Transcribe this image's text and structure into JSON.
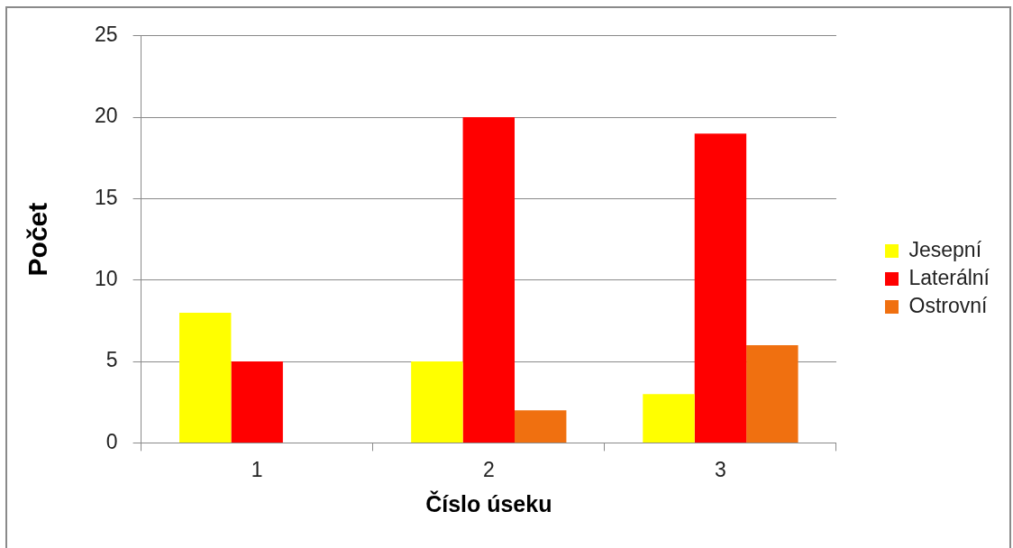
{
  "chart_data": {
    "type": "bar",
    "xlabel": "Číslo úseku",
    "ylabel": "Počet",
    "categories": [
      "1",
      "2",
      "3"
    ],
    "series": [
      {
        "name": "Jesepní",
        "color": "#ffff00",
        "values": [
          8,
          5,
          3
        ]
      },
      {
        "name": "Laterální",
        "color": "#ff0000",
        "values": [
          5,
          20,
          19
        ]
      },
      {
        "name": "Ostrovní",
        "color": "#f07010",
        "values": [
          null,
          2,
          6
        ]
      }
    ],
    "ylim": [
      0,
      25
    ],
    "yticks": [
      0,
      5,
      10,
      15,
      20,
      25
    ],
    "grid": "y",
    "legend": "right"
  }
}
